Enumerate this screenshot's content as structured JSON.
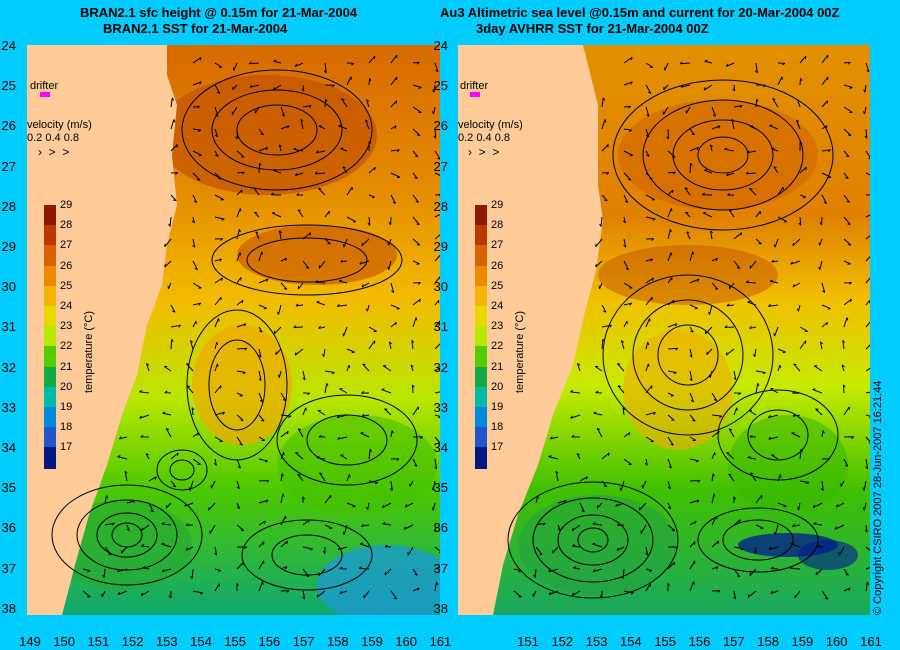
{
  "titles": {
    "left_line1": "BRAN2.1 sfc height @ 0.15m for 21-Mar-2004",
    "left_line2": "BRAN2.1 SST for 21-Mar-2004",
    "right_line1": "Au3 Altimetric sea level  @0.15m and current for 20-Mar-2004 00Z",
    "right_line2": "3day AVHRR SST for 21-Mar-2004 00Z"
  },
  "lat_ticks": [
    "24",
    "25",
    "26",
    "27",
    "28",
    "29",
    "30",
    "31",
    "32",
    "33",
    "34",
    "35",
    "36",
    "37",
    "38"
  ],
  "lon_ticks_left": [
    "149",
    "150",
    "151",
    "152",
    "153",
    "154",
    "155",
    "156",
    "157",
    "158",
    "159",
    "160",
    "161"
  ],
  "lon_ticks_right": [
    "151",
    "152",
    "153",
    "154",
    "155",
    "156",
    "157",
    "158",
    "159",
    "160",
    "161"
  ],
  "drifter_label": "drifter",
  "velocity": {
    "title": "velocity (m/s)",
    "ticks": "0.2 0.4 0.8"
  },
  "colorbar": {
    "title": "temperature (°C)",
    "ticks": [
      "29",
      "28",
      "27",
      "26",
      "25",
      "24",
      "23",
      "22",
      "21",
      "20",
      "19",
      "18",
      "17"
    ],
    "colors": [
      "#8b1a00",
      "#b83a00",
      "#d96200",
      "#eb8a00",
      "#f5b400",
      "#e8d800",
      "#b8e800",
      "#55cc00",
      "#11aa44",
      "#00bbaa",
      "#0088dd",
      "#2255cc",
      "#001880"
    ]
  },
  "copyright": "© Copyright CSIRO 2007   28-Jun-2007 16:21:44",
  "colors": {
    "background": "#00ccff",
    "land": "#ffcc99",
    "drifter": "#ff00ff"
  }
}
